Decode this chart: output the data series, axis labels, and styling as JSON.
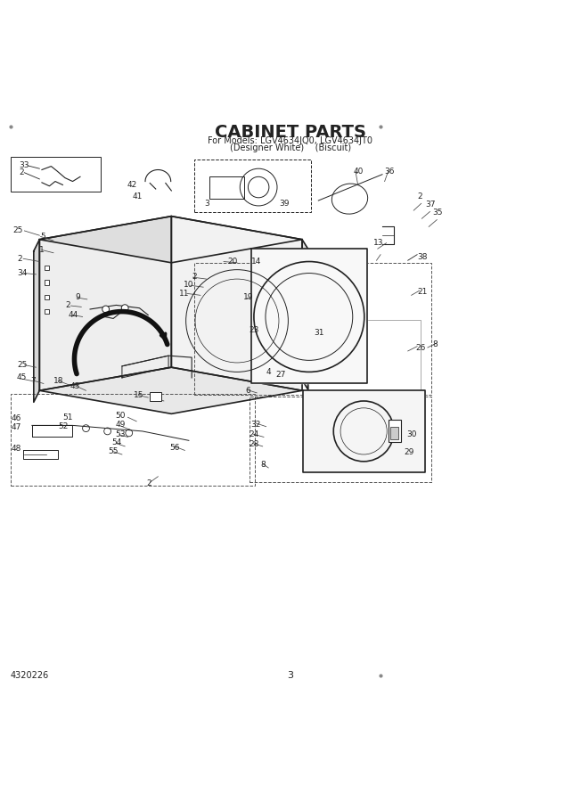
{
  "title": "CABINET PARTS",
  "subtitle1": "For Models: LGV4634JQ0, LGV4634JT0",
  "subtitle2": "(Designer White)    (Biscuit)",
  "page_num": "3",
  "doc_num": "4320226",
  "bg_color": "#ffffff",
  "line_color": "#222222"
}
